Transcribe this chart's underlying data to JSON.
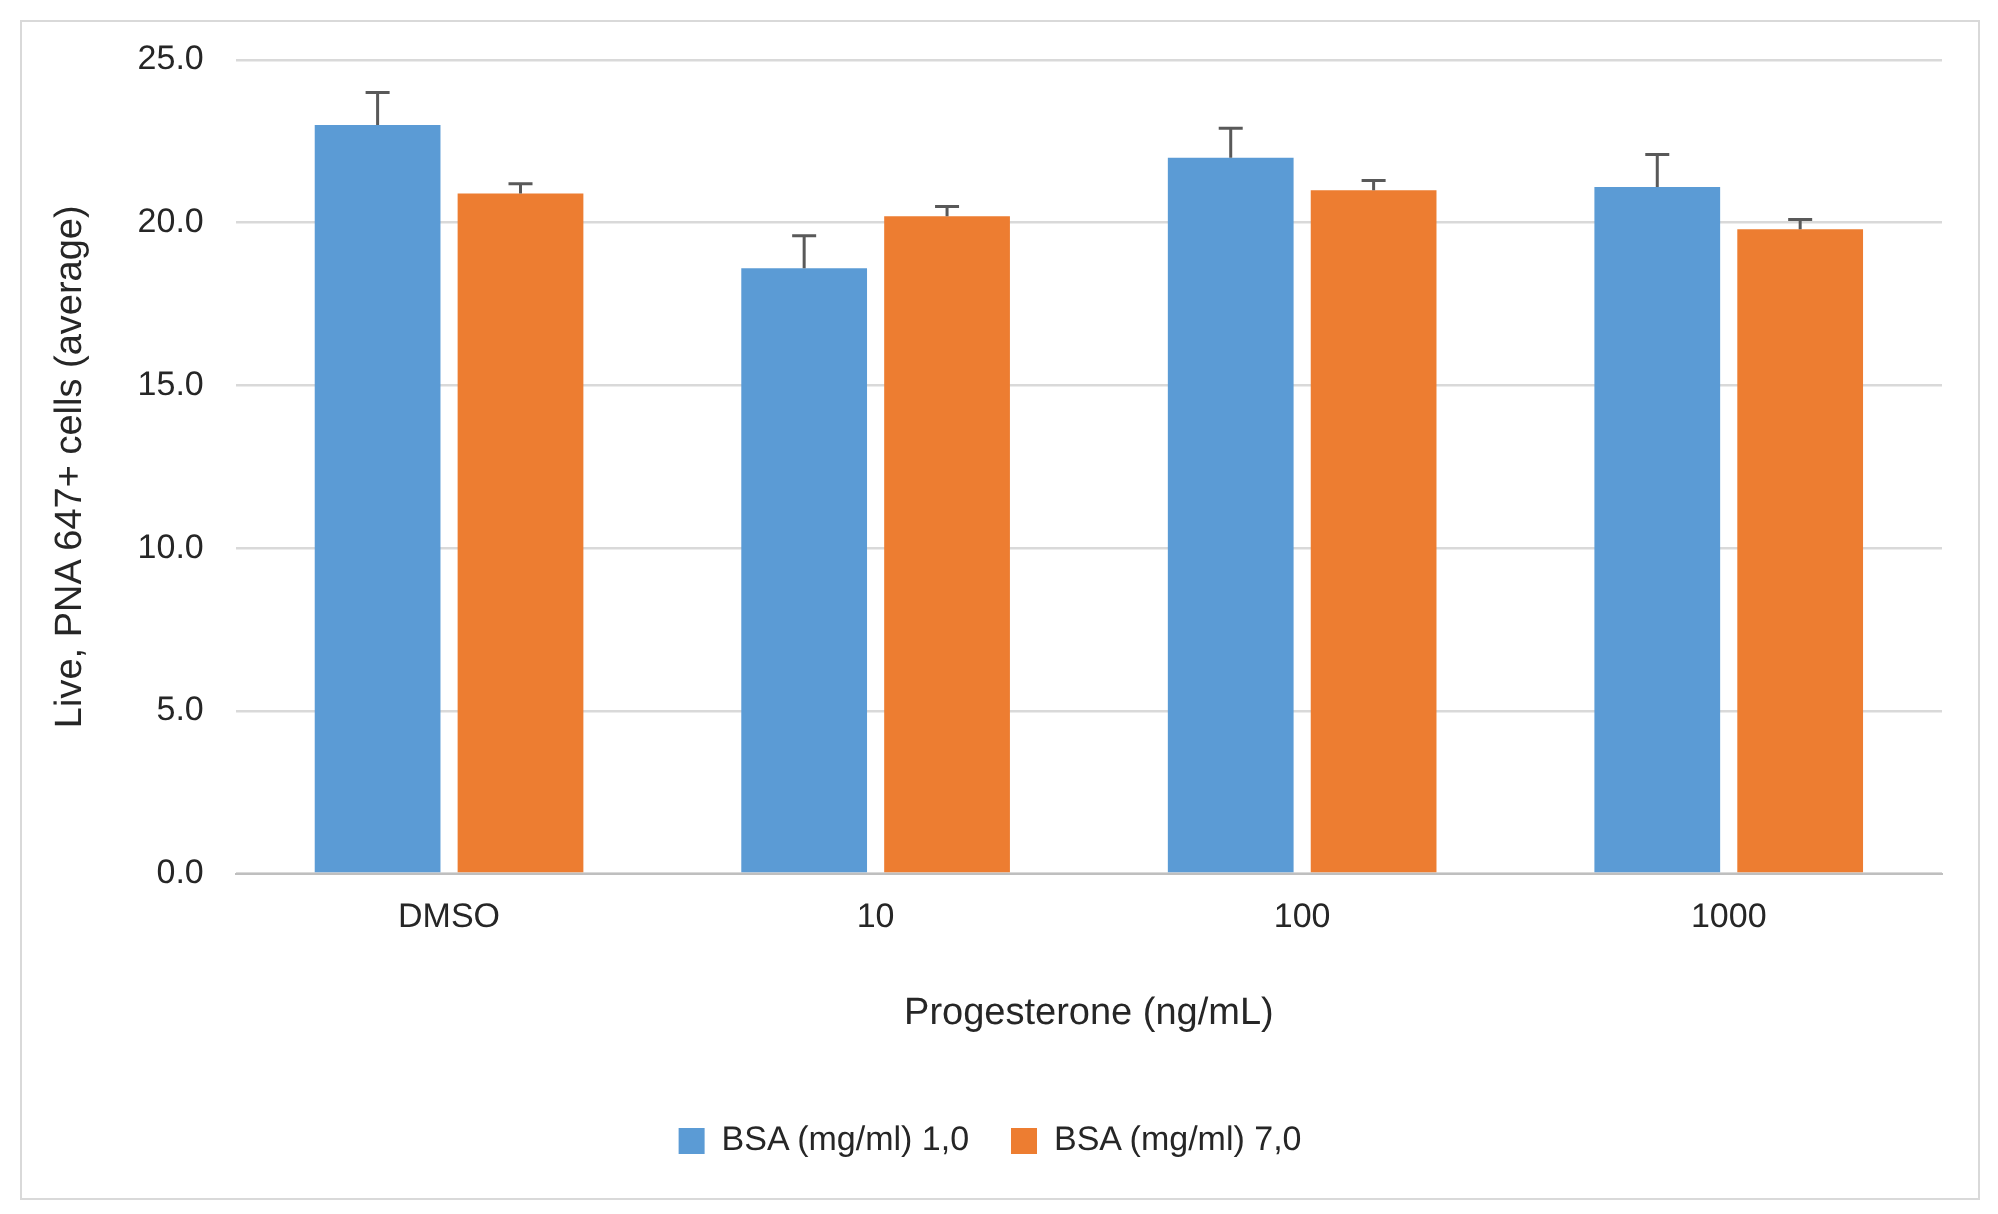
{
  "chart_data": {
    "type": "bar",
    "xlabel": "Progesterone (ng/mL)",
    "ylabel": "Live, PNA 647+ cells (average)",
    "categories": [
      "DMSO",
      "10",
      "100",
      "1000"
    ],
    "series": [
      {
        "name": "BSA (mg/ml) 1,0",
        "color": "#5b9bd5",
        "values": [
          23.0,
          18.6,
          22.0,
          21.1
        ],
        "errors": [
          [
            23.0,
            24.0
          ],
          [
            18.6,
            19.6
          ],
          [
            22.0,
            22.9
          ],
          [
            21.1,
            22.1
          ]
        ]
      },
      {
        "name": "BSA (mg/ml) 7,0",
        "color": "#ed7d31",
        "values": [
          20.9,
          20.2,
          21.0,
          19.8
        ],
        "errors": [
          [
            20.9,
            21.2
          ],
          [
            20.2,
            20.5
          ],
          [
            21.0,
            21.3
          ],
          [
            19.8,
            20.1
          ]
        ]
      }
    ],
    "ylim": [
      0,
      25
    ],
    "yticks": [
      {
        "value": 0,
        "label": "0.0"
      },
      {
        "value": 5,
        "label": "5.0"
      },
      {
        "value": 10,
        "label": "10.0"
      },
      {
        "value": 15,
        "label": "15.0"
      },
      {
        "value": 20,
        "label": "20.0"
      },
      {
        "value": 25,
        "label": "25.0"
      }
    ],
    "grid": "y",
    "legend": "bottom"
  }
}
